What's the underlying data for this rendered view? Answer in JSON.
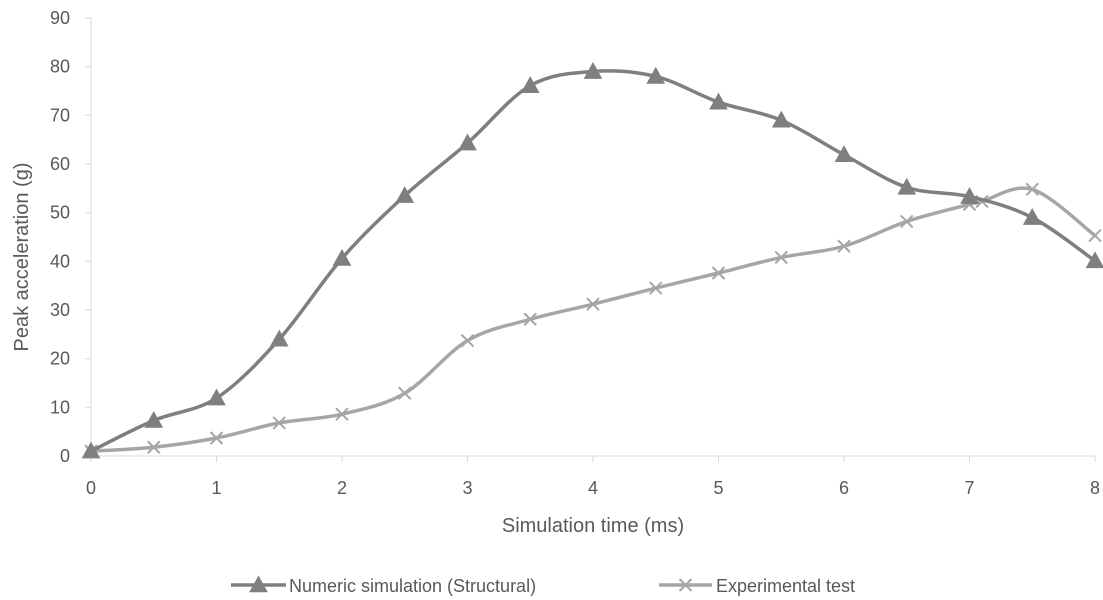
{
  "chart_data": {
    "type": "line",
    "title": "",
    "xlabel": "Simulation time  (ms)",
    "ylabel": "Peak acceleration  (g)",
    "xlim": [
      0,
      8
    ],
    "ylim": [
      0,
      90
    ],
    "x_ticks": [
      0,
      1,
      2,
      3,
      4,
      5,
      6,
      7,
      8
    ],
    "y_ticks": [
      0,
      10,
      20,
      30,
      40,
      50,
      60,
      70,
      80,
      90
    ],
    "grid": false,
    "smooth": true,
    "legend_position": "bottom",
    "series": [
      {
        "name": "Numeric simulation (Structural)",
        "marker": "triangle",
        "color": "#7f7f7f",
        "x": [
          0,
          0.5,
          1,
          1.5,
          2,
          2.5,
          3,
          3.5,
          4,
          4.5,
          5,
          5.5,
          6,
          6.5,
          7,
          7.5,
          8
        ],
        "values": [
          1,
          7.3,
          11.9,
          24,
          40.6,
          53.5,
          64.3,
          76.1,
          79,
          78,
          72.7,
          69,
          61.9,
          55.2,
          53.3,
          49,
          40.1
        ]
      },
      {
        "name": "Experimental test",
        "marker": "x",
        "color": "#a6a6a6",
        "x": [
          0,
          0.5,
          1,
          1.5,
          2,
          2.5,
          3,
          3.5,
          4,
          4.5,
          5,
          5.5,
          6,
          6.5,
          7,
          7.1,
          7.5,
          8
        ],
        "values": [
          1,
          1.8,
          3.7,
          6.8,
          8.6,
          12.9,
          23.7,
          28.1,
          31.2,
          34.5,
          37.6,
          40.8,
          43.1,
          48.2,
          51.7,
          52.3,
          54.8,
          45.3
        ]
      }
    ]
  }
}
